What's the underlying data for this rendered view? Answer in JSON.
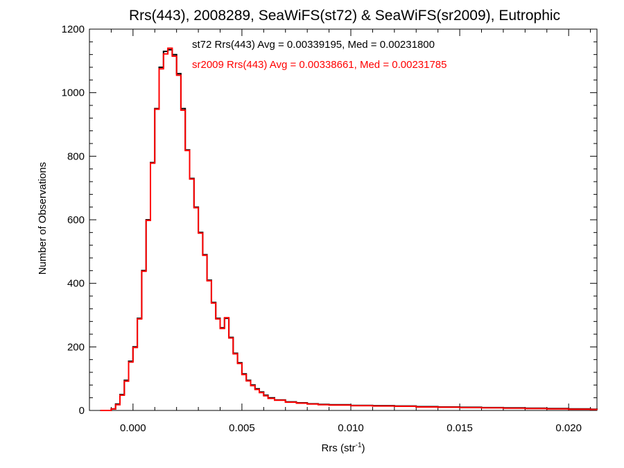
{
  "chart_data": {
    "type": "line",
    "step": true,
    "title": "Rrs(443), 2008289, SeaWiFS(st72) & SeaWiFS(sr2009), Eutrophic",
    "xlabel": "Rrs (str",
    "xlabel_sup": "-1",
    "xlabel_end": ")",
    "ylabel": "Number of Observations",
    "xlim": [
      -0.002,
      0.0213
    ],
    "ylim": [
      0,
      1200
    ],
    "xticks": [
      0.0,
      0.005,
      0.01,
      0.015,
      0.02
    ],
    "xtick_labels": [
      "0.000",
      "0.005",
      "0.010",
      "0.015",
      "0.020"
    ],
    "yticks": [
      0,
      200,
      400,
      600,
      800,
      1000,
      1200
    ],
    "ytick_labels": [
      "0",
      "200",
      "400",
      "600",
      "800",
      "1000",
      "1200"
    ],
    "grid": false,
    "legend": "top-center",
    "annotations": [
      {
        "text": "st72 Rrs(443) Avg = 0.00339195, Med = 0.00231800",
        "color": "#000000"
      },
      {
        "text": "sr2009 Rrs(443) Avg = 0.00338661, Med = 0.00231785",
        "color": "#ff0000"
      }
    ],
    "series": [
      {
        "color": "#000000",
        "x": [
          -0.0015,
          -0.001,
          -0.0008,
          -0.0006,
          -0.0004,
          -0.0002,
          0.0,
          0.0002,
          0.0004,
          0.0006,
          0.0008,
          0.001,
          0.0012,
          0.0014,
          0.0016,
          0.0018,
          0.002,
          0.0022,
          0.0024,
          0.0026,
          0.0028,
          0.003,
          0.0032,
          0.0034,
          0.0036,
          0.0038,
          0.004,
          0.0042,
          0.0044,
          0.0046,
          0.0048,
          0.005,
          0.0052,
          0.0054,
          0.0056,
          0.0058,
          0.006,
          0.0062,
          0.0065,
          0.007,
          0.0075,
          0.008,
          0.0085,
          0.009,
          0.01,
          0.011,
          0.012,
          0.013,
          0.014,
          0.015,
          0.016,
          0.017,
          0.018,
          0.019,
          0.02,
          0.021,
          0.0213
        ],
        "y": [
          0,
          5,
          20,
          50,
          95,
          155,
          200,
          290,
          440,
          600,
          780,
          950,
          1080,
          1130,
          1135,
          1120,
          1060,
          950,
          820,
          730,
          640,
          560,
          490,
          410,
          340,
          290,
          260,
          290,
          230,
          180,
          150,
          115,
          95,
          80,
          68,
          58,
          48,
          40,
          33,
          27,
          24,
          21,
          19,
          18,
          16,
          15,
          14,
          12,
          11,
          10,
          9,
          8,
          7,
          6,
          5,
          4,
          3
        ]
      },
      {
        "color": "#ff0000",
        "x": [
          -0.0015,
          -0.001,
          -0.0008,
          -0.0006,
          -0.0004,
          -0.0002,
          0.0,
          0.0002,
          0.0004,
          0.0006,
          0.0008,
          0.001,
          0.0012,
          0.0014,
          0.0016,
          0.0018,
          0.002,
          0.0022,
          0.0024,
          0.0026,
          0.0028,
          0.003,
          0.0032,
          0.0034,
          0.0036,
          0.0038,
          0.004,
          0.0042,
          0.0044,
          0.0046,
          0.0048,
          0.005,
          0.0052,
          0.0054,
          0.0056,
          0.0058,
          0.006,
          0.0062,
          0.0065,
          0.007,
          0.0075,
          0.008,
          0.0085,
          0.009,
          0.01,
          0.011,
          0.012,
          0.013,
          0.014,
          0.015,
          0.016,
          0.017,
          0.018,
          0.019,
          0.02,
          0.021,
          0.0213
        ],
        "y": [
          0,
          5,
          18,
          48,
          92,
          152,
          198,
          288,
          438,
          598,
          778,
          948,
          1075,
          1122,
          1140,
          1115,
          1055,
          945,
          818,
          728,
          638,
          558,
          488,
          408,
          338,
          288,
          258,
          292,
          228,
          178,
          148,
          113,
          93,
          78,
          66,
          56,
          46,
          38,
          32,
          26,
          23,
          20,
          18,
          17,
          15,
          14,
          13,
          11,
          10,
          9,
          8,
          7,
          6,
          5,
          4,
          3,
          2
        ]
      }
    ]
  }
}
